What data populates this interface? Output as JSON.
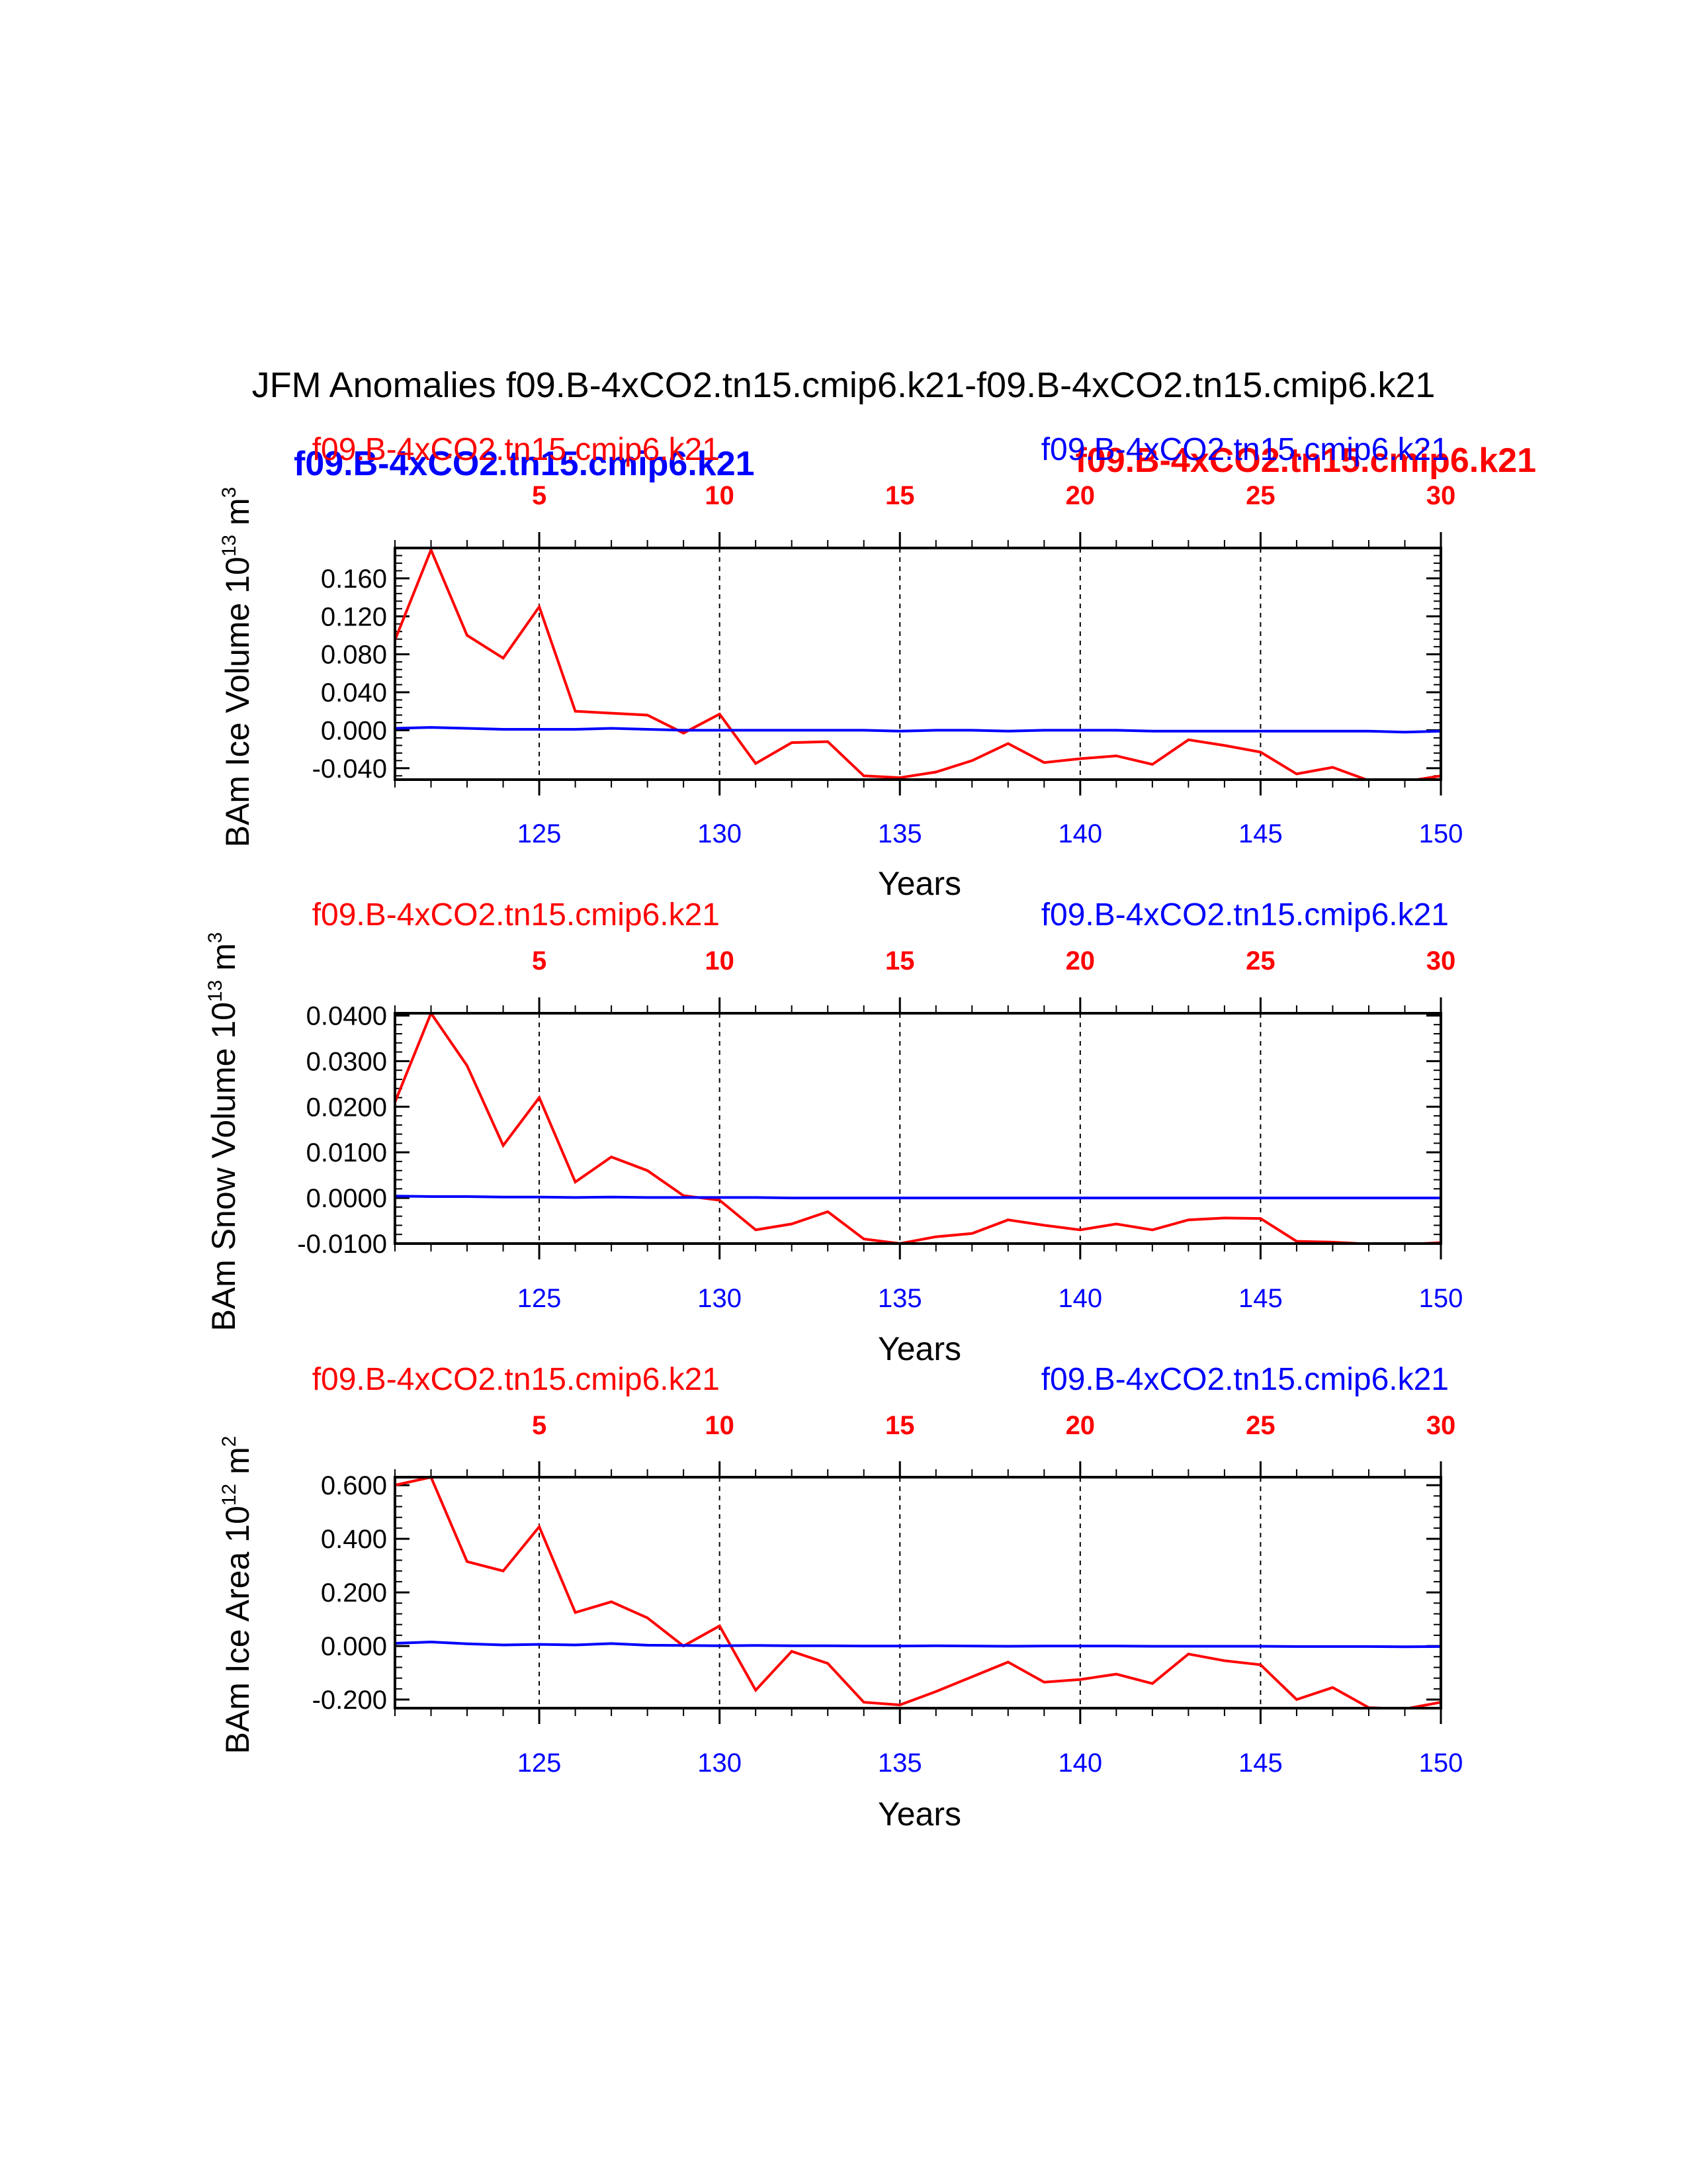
{
  "title": "JFM Anomalies f09.B-4xCO2.tn15.cmip6.k21-f09.B-4xCO2.tn15.cmip6.k21",
  "legend_overlay": {
    "blue_bold": "f09.B-4xCO2.tn15.cmip6.k21",
    "red_bold": "f09.B-4xCO2.tn15.cmip6.k21"
  },
  "colors": {
    "series_a": "#ff0000",
    "series_b": "#0000ff",
    "axis": "#000000"
  },
  "chart_data": [
    {
      "type": "line",
      "ylabel_main": "BAm Ice Volume 10",
      "ylabel_exp": "13",
      "ylabel_unit": " m",
      "ylabel_unit_exp": "3",
      "xlabel": "Years",
      "left_label": "f09.B-4xCO2.tn15.cmip6.k21",
      "right_label": "f09.B-4xCO2.tn15.cmip6.k21",
      "ylim": [
        -0.052,
        0.192
      ],
      "yticks": [
        -0.04,
        0.0,
        0.04,
        0.08,
        0.12,
        0.16
      ],
      "ytick_labels": [
        "-0.040",
        "0.000",
        "0.040",
        "0.080",
        "0.120",
        "0.160"
      ],
      "xlim": [
        121,
        150
      ],
      "xticks_bottom": [
        125,
        130,
        135,
        140,
        145,
        150
      ],
      "xticks_bottom_labels": [
        "125",
        "130",
        "135",
        "140",
        "145",
        "150"
      ],
      "xticks_top_pos": [
        125,
        130,
        135,
        140,
        145,
        150
      ],
      "xticks_top_labels": [
        "5",
        "10",
        "15",
        "20",
        "25",
        "30"
      ],
      "series": [
        {
          "name": "f09.B-4xCO2.tn15.cmip6.k21",
          "color": "#ff0000",
          "x": [
            121,
            122,
            123,
            124,
            125,
            126,
            127,
            128,
            129,
            130,
            131,
            132,
            133,
            134,
            135,
            136,
            137,
            138,
            139,
            140,
            141,
            142,
            143,
            144,
            145,
            146,
            147,
            148,
            149,
            150
          ],
          "values": [
            0.095,
            0.19,
            0.1,
            0.076,
            0.13,
            0.02,
            0.018,
            0.016,
            -0.003,
            0.017,
            -0.035,
            -0.013,
            -0.012,
            -0.048,
            -0.05,
            -0.044,
            -0.032,
            -0.014,
            -0.034,
            -0.03,
            -0.027,
            -0.036,
            -0.01,
            -0.016,
            -0.023,
            -0.046,
            -0.039,
            -0.053,
            -0.054,
            -0.048
          ]
        },
        {
          "name": "f09.B-4xCO2.tn15.cmip6.k21",
          "color": "#0000ff",
          "x": [
            121,
            122,
            123,
            124,
            125,
            126,
            127,
            128,
            129,
            130,
            131,
            132,
            133,
            134,
            135,
            136,
            137,
            138,
            139,
            140,
            141,
            142,
            143,
            144,
            145,
            146,
            147,
            148,
            149,
            150
          ],
          "values": [
            0.002,
            0.003,
            0.002,
            0.001,
            0.001,
            0.001,
            0.002,
            0.001,
            0.0,
            0.0,
            0.0,
            0.0,
            0.0,
            0.0,
            -0.001,
            0.0,
            0.0,
            -0.001,
            0.0,
            0.0,
            0.0,
            -0.001,
            -0.001,
            -0.001,
            -0.001,
            -0.001,
            -0.001,
            -0.001,
            -0.002,
            -0.001
          ]
        }
      ]
    },
    {
      "type": "line",
      "ylabel_main": "BAm Snow Volume 10",
      "ylabel_exp": "13",
      "ylabel_unit": " m",
      "ylabel_unit_exp": "3",
      "xlabel": "Years",
      "left_label": "f09.B-4xCO2.tn15.cmip6.k21",
      "right_label": "f09.B-4xCO2.tn15.cmip6.k21",
      "ylim": [
        -0.01,
        0.0405
      ],
      "yticks": [
        -0.01,
        0.0,
        0.01,
        0.02,
        0.03,
        0.04
      ],
      "ytick_labels": [
        "-0.0100",
        "0.0000",
        "0.0100",
        "0.0200",
        "0.0300",
        "0.0400"
      ],
      "xlim": [
        121,
        150
      ],
      "xticks_bottom": [
        125,
        130,
        135,
        140,
        145,
        150
      ],
      "xticks_bottom_labels": [
        "125",
        "130",
        "135",
        "140",
        "145",
        "150"
      ],
      "xticks_top_pos": [
        125,
        130,
        135,
        140,
        145,
        150
      ],
      "xticks_top_labels": [
        "5",
        "10",
        "15",
        "20",
        "25",
        "30"
      ],
      "series": [
        {
          "name": "f09.B-4xCO2.tn15.cmip6.k21",
          "color": "#ff0000",
          "x": [
            121,
            122,
            123,
            124,
            125,
            126,
            127,
            128,
            129,
            130,
            131,
            132,
            133,
            134,
            135,
            136,
            137,
            138,
            139,
            140,
            141,
            142,
            143,
            144,
            145,
            146,
            147,
            148,
            149,
            150
          ],
          "values": [
            0.021,
            0.0405,
            0.029,
            0.0115,
            0.022,
            0.0035,
            0.009,
            0.006,
            0.0005,
            -0.0005,
            -0.007,
            -0.0057,
            -0.003,
            -0.009,
            -0.01,
            -0.0085,
            -0.0078,
            -0.0048,
            -0.006,
            -0.007,
            -0.0057,
            -0.007,
            -0.0048,
            -0.0044,
            -0.0045,
            -0.0095,
            -0.0097,
            -0.0101,
            -0.0102,
            -0.0098
          ]
        },
        {
          "name": "f09.B-4xCO2.tn15.cmip6.k21",
          "color": "#0000ff",
          "x": [
            121,
            122,
            123,
            124,
            125,
            126,
            127,
            128,
            129,
            130,
            131,
            132,
            133,
            134,
            135,
            136,
            137,
            138,
            139,
            140,
            141,
            142,
            143,
            144,
            145,
            146,
            147,
            148,
            149,
            150
          ],
          "values": [
            0.0004,
            0.0003,
            0.0003,
            0.0002,
            0.0002,
            0.0001,
            0.0002,
            0.0001,
            0.0001,
            0.0001,
            0.0001,
            0.0,
            0.0,
            0.0,
            0.0,
            0.0,
            0.0,
            0.0,
            0.0,
            0.0,
            0.0,
            0.0,
            0.0,
            0.0,
            0.0,
            0.0,
            0.0,
            0.0,
            0.0,
            0.0
          ]
        }
      ]
    },
    {
      "type": "line",
      "ylabel_main": "BAm Ice Area 10",
      "ylabel_exp": "12",
      "ylabel_unit": " m",
      "ylabel_unit_exp": "2",
      "xlabel": "Years",
      "left_label": "f09.B-4xCO2.tn15.cmip6.k21",
      "right_label": "f09.B-4xCO2.tn15.cmip6.k21",
      "ylim": [
        -0.232,
        0.63
      ],
      "yticks": [
        -0.2,
        0.0,
        0.2,
        0.4,
        0.6
      ],
      "ytick_labels": [
        "-0.200",
        "0.000",
        "0.200",
        "0.400",
        "0.600"
      ],
      "xlim": [
        121,
        150
      ],
      "xticks_bottom": [
        125,
        130,
        135,
        140,
        145,
        150
      ],
      "xticks_bottom_labels": [
        "125",
        "130",
        "135",
        "140",
        "145",
        "150"
      ],
      "xticks_top_pos": [
        125,
        130,
        135,
        140,
        145,
        150
      ],
      "xticks_top_labels": [
        "5",
        "10",
        "15",
        "20",
        "25",
        "30"
      ],
      "series": [
        {
          "name": "f09.B-4xCO2.tn15.cmip6.k21",
          "color": "#ff0000",
          "x": [
            121,
            122,
            123,
            124,
            125,
            126,
            127,
            128,
            129,
            130,
            131,
            132,
            133,
            134,
            135,
            136,
            137,
            138,
            139,
            140,
            141,
            142,
            143,
            144,
            145,
            146,
            147,
            148,
            149,
            150
          ],
          "values": [
            0.6,
            0.63,
            0.315,
            0.28,
            0.445,
            0.125,
            0.165,
            0.105,
            0.0,
            0.075,
            -0.165,
            -0.02,
            -0.065,
            -0.21,
            -0.22,
            -0.17,
            -0.115,
            -0.06,
            -0.135,
            -0.125,
            -0.105,
            -0.14,
            -0.03,
            -0.055,
            -0.07,
            -0.2,
            -0.155,
            -0.23,
            -0.235,
            -0.21
          ]
        },
        {
          "name": "f09.B-4xCO2.tn15.cmip6.k21",
          "color": "#0000ff",
          "x": [
            121,
            122,
            123,
            124,
            125,
            126,
            127,
            128,
            129,
            130,
            131,
            132,
            133,
            134,
            135,
            136,
            137,
            138,
            139,
            140,
            141,
            142,
            143,
            144,
            145,
            146,
            147,
            148,
            149,
            150
          ],
          "values": [
            0.01,
            0.015,
            0.008,
            0.004,
            0.006,
            0.004,
            0.009,
            0.003,
            0.002,
            0.001,
            0.002,
            0.001,
            0.001,
            0.0,
            0.0,
            0.001,
            0.0,
            -0.001,
            0.0,
            0.0,
            0.0,
            -0.001,
            -0.001,
            -0.001,
            -0.001,
            -0.002,
            -0.002,
            -0.002,
            -0.003,
            -0.002
          ]
        }
      ]
    }
  ]
}
